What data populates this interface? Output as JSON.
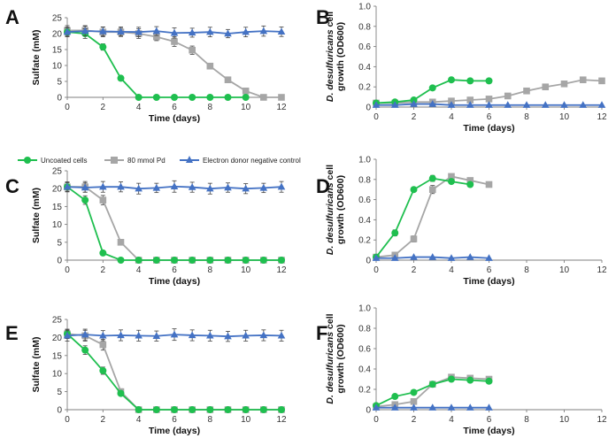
{
  "figure": {
    "legend": [
      {
        "name": "Uncoated cells",
        "color": "#1fbf4f",
        "marker": "circle"
      },
      {
        "name": "80 mmol Pd",
        "color": "#a6a6a6",
        "marker": "square"
      },
      {
        "name": "Electron donor negative control",
        "color": "#4472c4",
        "marker": "triangle"
      }
    ]
  },
  "chart_data": [
    {
      "panel_label": "A",
      "type": "line",
      "xlabel": "Time (days)",
      "ylabel": "Sulfate (mM)",
      "xlim": [
        0,
        12
      ],
      "ylim": [
        0,
        25
      ],
      "xticks": [
        "0",
        "2",
        "4",
        "6",
        "8",
        "10",
        "12"
      ],
      "yticks": [
        "0",
        "5",
        "10",
        "15",
        "20",
        "25"
      ],
      "series": [
        {
          "name": "Uncoated cells",
          "x": [
            0,
            1,
            2,
            3,
            4,
            5,
            6,
            7,
            8,
            9,
            10
          ],
          "values": [
            20.5,
            20.0,
            15.8,
            6.0,
            0,
            0,
            0,
            0,
            0,
            0,
            0
          ],
          "errors": [
            1.5,
            1.5,
            1,
            0.6,
            0,
            0,
            0,
            0,
            0,
            0,
            0
          ]
        },
        {
          "name": "80 mmol Pd",
          "x": [
            0,
            1,
            2,
            3,
            4,
            5,
            6,
            7,
            8,
            9,
            10,
            11,
            12
          ],
          "values": [
            21.0,
            21.0,
            20.5,
            20.5,
            20.0,
            19.0,
            17.5,
            14.8,
            9.8,
            5.5,
            2.0,
            0,
            0
          ],
          "errors": [
            1.5,
            1.5,
            1.5,
            1.2,
            1.5,
            1.2,
            1.5,
            1.3,
            0.8,
            0.5,
            0.5,
            0,
            0
          ]
        },
        {
          "name": "Electron donor negative control",
          "x": [
            0,
            1,
            2,
            3,
            4,
            5,
            6,
            7,
            8,
            9,
            10,
            11,
            12
          ],
          "values": [
            20.5,
            20.8,
            20.7,
            20.6,
            20.5,
            20.8,
            20.2,
            20.3,
            20.5,
            20.0,
            20.5,
            20.8,
            20.6
          ],
          "errors": [
            1.3,
            1.5,
            1.4,
            1.5,
            1.5,
            1.4,
            1.6,
            1.4,
            1.5,
            1.3,
            1.5,
            1.6,
            1.5
          ]
        }
      ]
    },
    {
      "panel_label": "B",
      "type": "line",
      "xlabel": "Time (days)",
      "ylabel_lines": [
        "D. desulfuricans cell",
        "growth (OD600)"
      ],
      "xlim": [
        0,
        12
      ],
      "ylim": [
        0,
        1.0
      ],
      "xticks": [
        "0",
        "2",
        "4",
        "6",
        "8",
        "10",
        "12"
      ],
      "yticks": [
        "0",
        "0.2",
        "0.4",
        "0.6",
        "0.8",
        "1.0"
      ],
      "series": [
        {
          "name": "Uncoated cells",
          "x": [
            0,
            1,
            2,
            3,
            4,
            5,
            6
          ],
          "values": [
            0.04,
            0.05,
            0.07,
            0.19,
            0.27,
            0.26,
            0.26
          ],
          "errors": [
            0,
            0,
            0,
            0,
            0,
            0,
            0
          ]
        },
        {
          "name": "80 mmol Pd",
          "x": [
            0,
            1,
            2,
            3,
            4,
            5,
            6,
            7,
            8,
            9,
            10,
            11,
            12
          ],
          "values": [
            0.04,
            0.04,
            0.05,
            0.05,
            0.06,
            0.07,
            0.08,
            0.11,
            0.16,
            0.2,
            0.23,
            0.27,
            0.26
          ],
          "errors": [
            0,
            0,
            0,
            0,
            0,
            0,
            0,
            0,
            0,
            0,
            0,
            0,
            0
          ]
        },
        {
          "name": "Electron donor negative control",
          "x": [
            0,
            1,
            2,
            3,
            4,
            5,
            6,
            7,
            8,
            9,
            10,
            11,
            12
          ],
          "values": [
            0.02,
            0.02,
            0.03,
            0.03,
            0.02,
            0.02,
            0.02,
            0.02,
            0.02,
            0.02,
            0.02,
            0.02,
            0.02
          ],
          "errors": [
            0,
            0,
            0,
            0,
            0,
            0,
            0,
            0,
            0,
            0,
            0,
            0,
            0
          ]
        }
      ]
    },
    {
      "panel_label": "C",
      "type": "line",
      "xlabel": "Time (days)",
      "ylabel": "Sulfate (mM)",
      "xlim": [
        0,
        12
      ],
      "ylim": [
        0,
        25
      ],
      "xticks": [
        "0",
        "2",
        "4",
        "6",
        "8",
        "10",
        "12"
      ],
      "yticks": [
        "0",
        "5",
        "10",
        "15",
        "20",
        "25"
      ],
      "series": [
        {
          "name": "Uncoated cells",
          "x": [
            0,
            1,
            2,
            3,
            4,
            5,
            6,
            7,
            8,
            9,
            10,
            11,
            12
          ],
          "values": [
            20.5,
            16.8,
            2.0,
            0,
            0,
            0,
            0,
            0,
            0,
            0,
            0,
            0,
            0
          ],
          "errors": [
            1.2,
            1.2,
            0.5,
            0,
            0,
            0,
            0,
            0,
            0,
            0,
            0,
            0,
            0
          ]
        },
        {
          "name": "80 mmol Pd",
          "x": [
            0,
            1,
            2,
            3,
            4,
            5,
            6,
            7,
            8,
            9,
            10,
            11,
            12
          ],
          "values": [
            20.5,
            20.5,
            16.8,
            5.0,
            0,
            0,
            0,
            0,
            0,
            0,
            0,
            0,
            0
          ],
          "errors": [
            1.4,
            1.5,
            1.3,
            0.8,
            0,
            0,
            0,
            0,
            0,
            0,
            0,
            0,
            0
          ]
        },
        {
          "name": "Electron donor negative control",
          "x": [
            0,
            1,
            2,
            3,
            4,
            5,
            6,
            7,
            8,
            9,
            10,
            11,
            12
          ],
          "values": [
            20.5,
            20.3,
            20.5,
            20.5,
            20.0,
            20.2,
            20.6,
            20.4,
            20.0,
            20.3,
            20.0,
            20.2,
            20.5
          ],
          "errors": [
            1.2,
            1.3,
            1.5,
            1.4,
            1.5,
            1.3,
            1.6,
            1.4,
            1.5,
            1.3,
            1.4,
            1.3,
            1.5
          ]
        }
      ]
    },
    {
      "panel_label": "D",
      "type": "line",
      "xlabel": "Time (days)",
      "ylabel_lines": [
        "D. desulfuricans cell",
        "growth (OD600)"
      ],
      "xlim": [
        0,
        12
      ],
      "ylim": [
        0,
        1.0
      ],
      "xticks": [
        "0",
        "2",
        "4",
        "6",
        "8",
        "10",
        "12"
      ],
      "yticks": [
        "0",
        "0.2",
        "0.4",
        "0.6",
        "0.8",
        "1.0"
      ],
      "series": [
        {
          "name": "Uncoated cells",
          "x": [
            0,
            1,
            2,
            3,
            4,
            5
          ],
          "values": [
            0.03,
            0.27,
            0.7,
            0.81,
            0.78,
            0.75
          ],
          "errors": [
            0.01,
            0.03,
            0.02,
            0.03,
            0.02,
            0.02
          ]
        },
        {
          "name": "80 mmol Pd",
          "x": [
            0,
            1,
            2,
            3,
            4,
            5,
            6
          ],
          "values": [
            0.03,
            0.05,
            0.21,
            0.7,
            0.83,
            0.79,
            0.75
          ],
          "errors": [
            0.01,
            0.01,
            0.03,
            0.04,
            0.02,
            0.02,
            0.02
          ]
        },
        {
          "name": "Electron donor negative control",
          "x": [
            0,
            1,
            2,
            3,
            4,
            5,
            6
          ],
          "values": [
            0.02,
            0.02,
            0.03,
            0.03,
            0.02,
            0.03,
            0.02
          ],
          "errors": [
            0,
            0,
            0,
            0,
            0,
            0,
            0
          ]
        }
      ]
    },
    {
      "panel_label": "E",
      "type": "line",
      "xlabel": "Time (days)",
      "ylabel": "Sulfate (mM)",
      "xlim": [
        0,
        12
      ],
      "ylim": [
        0,
        25
      ],
      "xticks": [
        "0",
        "2",
        "4",
        "6",
        "8",
        "10",
        "12"
      ],
      "yticks": [
        "0",
        "5",
        "10",
        "15",
        "20",
        "25"
      ],
      "series": [
        {
          "name": "Uncoated cells",
          "x": [
            0,
            1,
            2,
            3,
            4,
            5,
            6,
            7,
            8,
            9,
            10,
            11,
            12
          ],
          "values": [
            21.0,
            16.5,
            10.8,
            4.5,
            0,
            0,
            0,
            0,
            0,
            0,
            0,
            0,
            0
          ],
          "errors": [
            1.2,
            1.2,
            1,
            0.5,
            0,
            0,
            0,
            0,
            0,
            0,
            0,
            0,
            0
          ]
        },
        {
          "name": "80 mmol Pd",
          "x": [
            0,
            1,
            2,
            3,
            4,
            5,
            6,
            7,
            8,
            9,
            10,
            11,
            12
          ],
          "values": [
            21.0,
            20.5,
            18.0,
            5.0,
            0,
            0,
            0,
            0,
            0,
            0,
            0,
            0,
            0
          ],
          "errors": [
            1.3,
            1.5,
            1.5,
            0.8,
            0,
            0,
            0,
            0,
            0,
            0,
            0,
            0,
            0
          ]
        },
        {
          "name": "Electron donor negative control",
          "x": [
            0,
            1,
            2,
            3,
            4,
            5,
            6,
            7,
            8,
            9,
            10,
            11,
            12
          ],
          "values": [
            20.5,
            20.8,
            20.5,
            20.6,
            20.5,
            20.4,
            20.8,
            20.6,
            20.5,
            20.3,
            20.5,
            20.6,
            20.5
          ],
          "errors": [
            1.5,
            1.5,
            1.4,
            1.5,
            1.5,
            1.4,
            1.6,
            1.5,
            1.5,
            1.4,
            1.5,
            1.5,
            1.5
          ]
        }
      ]
    },
    {
      "panel_label": "F",
      "type": "line",
      "xlabel": "Time (days)",
      "ylabel_lines": [
        "D. desulfuricans cell",
        "growth (OD600)"
      ],
      "xlim": [
        0,
        12
      ],
      "ylim": [
        0,
        1.0
      ],
      "xticks": [
        "0",
        "2",
        "4",
        "6",
        "8",
        "10",
        "12"
      ],
      "yticks": [
        "0",
        "0.2",
        "0.4",
        "0.6",
        "0.8",
        "1.0"
      ],
      "series": [
        {
          "name": "Uncoated cells",
          "x": [
            0,
            1,
            2,
            3,
            4,
            5,
            6
          ],
          "values": [
            0.04,
            0.13,
            0.17,
            0.25,
            0.3,
            0.29,
            0.28
          ],
          "errors": [
            0,
            0,
            0,
            0,
            0,
            0,
            0
          ]
        },
        {
          "name": "80 mmol Pd",
          "x": [
            0,
            1,
            2,
            3,
            4,
            5,
            6
          ],
          "values": [
            0.03,
            0.05,
            0.08,
            0.25,
            0.32,
            0.31,
            0.3
          ],
          "errors": [
            0,
            0,
            0,
            0,
            0,
            0,
            0
          ]
        },
        {
          "name": "Electron donor negative control",
          "x": [
            0,
            1,
            2,
            3,
            4,
            5,
            6
          ],
          "values": [
            0.02,
            0.02,
            0.02,
            0.02,
            0.02,
            0.02,
            0.02
          ],
          "errors": [
            0,
            0,
            0,
            0,
            0,
            0,
            0
          ]
        }
      ]
    }
  ]
}
